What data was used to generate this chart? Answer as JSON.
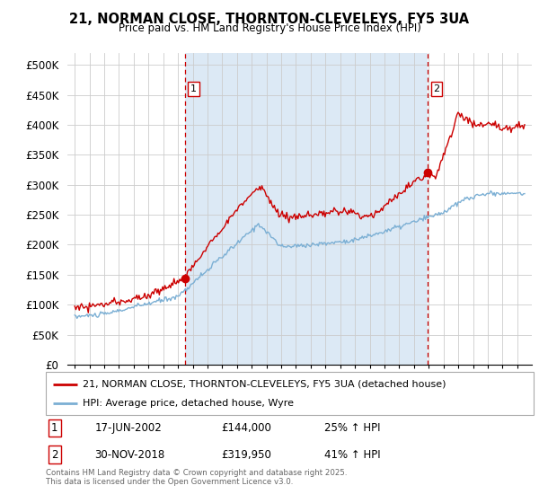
{
  "title": "21, NORMAN CLOSE, THORNTON-CLEVELEYS, FY5 3UA",
  "subtitle": "Price paid vs. HM Land Registry's House Price Index (HPI)",
  "legend_line1": "21, NORMAN CLOSE, THORNTON-CLEVELEYS, FY5 3UA (detached house)",
  "legend_line2": "HPI: Average price, detached house, Wyre",
  "annotation1_date": "17-JUN-2002",
  "annotation1_price": "£144,000",
  "annotation1_hpi": "25% ↑ HPI",
  "annotation2_date": "30-NOV-2018",
  "annotation2_price": "£319,950",
  "annotation2_hpi": "41% ↑ HPI",
  "footnote": "Contains HM Land Registry data © Crown copyright and database right 2025.\nThis data is licensed under the Open Government Licence v3.0.",
  "line1_color": "#cc0000",
  "line2_color": "#7bafd4",
  "vline_color": "#cc0000",
  "fill_color": "#dce9f5",
  "background_color": "#ffffff",
  "ylim": [
    0,
    520000
  ],
  "yticks": [
    0,
    50000,
    100000,
    150000,
    200000,
    250000,
    300000,
    350000,
    400000,
    450000,
    500000
  ],
  "sale1_x": 2002.46,
  "sale1_y": 144000,
  "sale2_x": 2018.92,
  "sale2_y": 319950,
  "vline1_x": 2002.46,
  "vline2_x": 2018.92,
  "xmin": 1994.5,
  "xmax": 2026.0
}
